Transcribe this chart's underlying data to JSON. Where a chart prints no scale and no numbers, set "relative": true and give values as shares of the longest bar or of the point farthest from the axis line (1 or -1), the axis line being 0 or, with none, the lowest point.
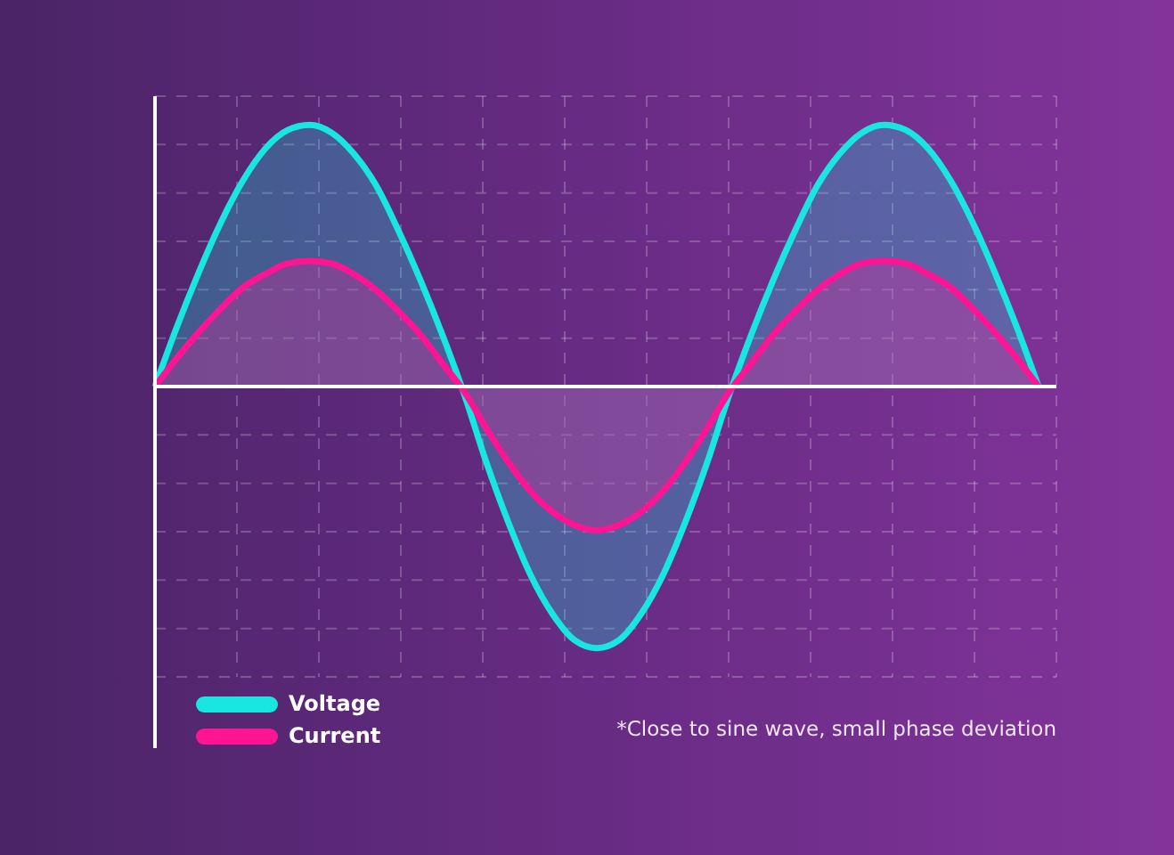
{
  "chart_data": {
    "type": "area",
    "relative": true,
    "grid": true,
    "legend": "bottom left",
    "marker": "none",
    "line_style": "solid",
    "categories": [
      null,
      null,
      null,
      null,
      null,
      null,
      null,
      null,
      null,
      null,
      null,
      null,
      null,
      null,
      null,
      null,
      null,
      null,
      null,
      null,
      null,
      null,
      null,
      null,
      null,
      null,
      null,
      null,
      null,
      null,
      null,
      null,
      null,
      null,
      null,
      null,
      null,
      null,
      null,
      null,
      null
    ],
    "series": [
      {
        "name": "Voltage",
        "color": "#19e6e0",
        "values": [
          0,
          0.23,
          0.44,
          0.63,
          0.79,
          0.91,
          0.98,
          1,
          0.97,
          0.89,
          0.77,
          0.6,
          0.41,
          0.2,
          -0.03,
          -0.29,
          -0.52,
          -0.72,
          -0.87,
          -0.97,
          -1,
          -0.97,
          -0.87,
          -0.72,
          -0.52,
          -0.29,
          -0.03,
          0.2,
          0.41,
          0.6,
          0.77,
          0.89,
          0.97,
          1,
          0.98,
          0.91,
          0.79,
          0.63,
          0.44,
          0.23,
          0
        ]
      },
      {
        "name": "Current",
        "color": "#ff1493",
        "values": [
          0,
          0.11,
          0.21,
          0.3,
          0.38,
          0.43,
          0.47,
          0.48,
          0.47,
          0.43,
          0.37,
          0.29,
          0.2,
          0.09,
          -0.02,
          -0.16,
          -0.29,
          -0.4,
          -0.48,
          -0.53,
          -0.55,
          -0.53,
          -0.48,
          -0.4,
          -0.29,
          -0.16,
          -0.02,
          0.09,
          0.2,
          0.29,
          0.37,
          0.43,
          0.47,
          0.48,
          0.47,
          0.43,
          0.38,
          0.3,
          0.21,
          0.11,
          0
        ]
      }
    ],
    "annotations": [
      "*Close to sine wave, small phase deviation"
    ]
  }
}
